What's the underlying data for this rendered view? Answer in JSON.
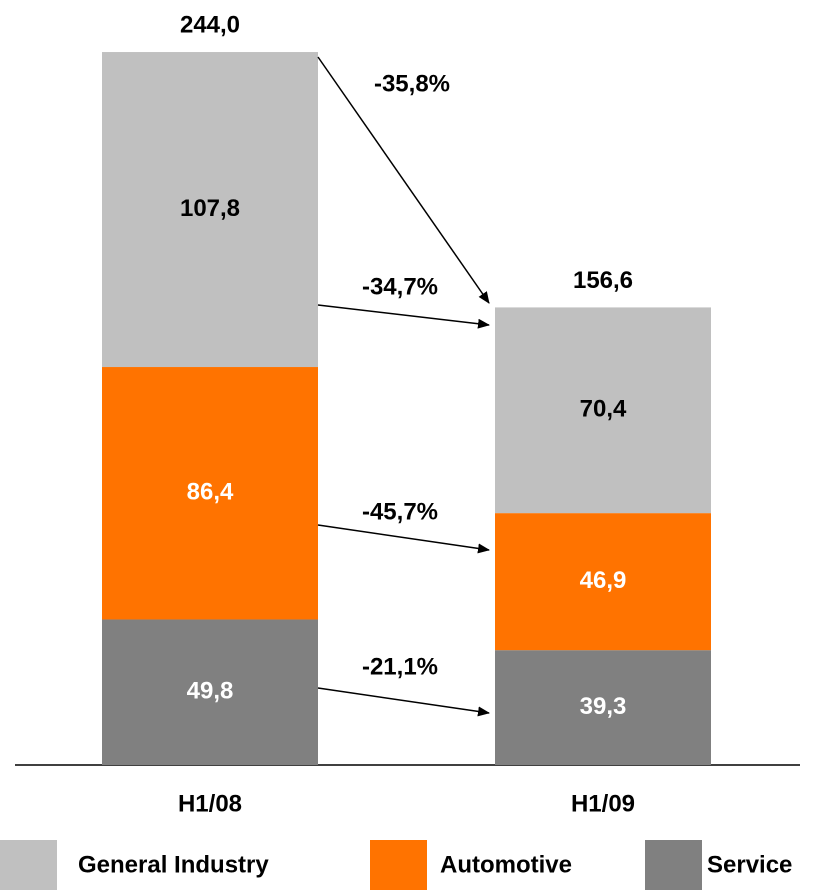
{
  "chart_data": {
    "type": "stacked_bar",
    "categories": [
      "H1/08",
      "H1/09"
    ],
    "series": [
      {
        "name": "General Industry",
        "color": "#c0c0c0",
        "values": [
          107.8,
          70.4
        ],
        "value_labels": [
          "107,8",
          "70,4"
        ]
      },
      {
        "name": "Automotive",
        "color": "#ff7300",
        "values": [
          86.4,
          46.9
        ],
        "value_labels": [
          "86,4",
          "46,9"
        ]
      },
      {
        "name": "Service",
        "color": "#808080",
        "values": [
          49.8,
          39.3
        ],
        "value_labels": [
          "49,8",
          "39,3"
        ]
      }
    ],
    "totals": [
      244.0,
      156.6
    ],
    "total_labels": [
      "244,0",
      "156,6"
    ],
    "changes": [
      -35.8,
      -34.7,
      -45.7,
      -21.1
    ],
    "change_labels": [
      "-35,8%",
      "-34,7%",
      "-45,7%",
      "-21,1%"
    ],
    "ylim": [
      0,
      250
    ]
  }
}
